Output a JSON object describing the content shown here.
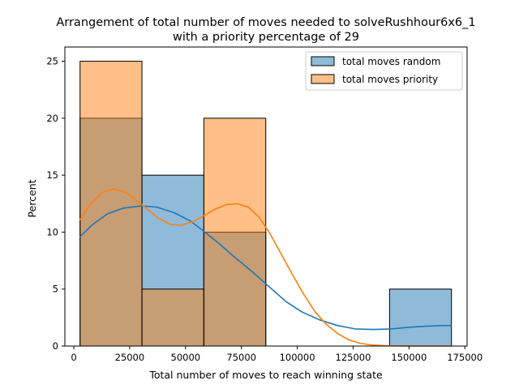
{
  "chart_data": {
    "type": "histogram",
    "title_line1": "Arrangement of total number of moves needed to solveRushhour6x6_1",
    "title_line2": "with a priority percentage of 29",
    "xlabel": "Total number of moves to reach winning state",
    "ylabel": "Percent",
    "xlim": [
      -4000,
      176000
    ],
    "ylim": [
      0,
      26.25
    ],
    "xticks": [
      {
        "value": 0,
        "label": "0"
      },
      {
        "value": 25000,
        "label": "25000"
      },
      {
        "value": 50000,
        "label": "50000"
      },
      {
        "value": 75000,
        "label": "75000"
      },
      {
        "value": 100000,
        "label": "100000"
      },
      {
        "value": 125000,
        "label": "125000"
      },
      {
        "value": 150000,
        "label": "150000"
      },
      {
        "value": 175000,
        "label": "175000"
      }
    ],
    "yticks": [
      {
        "value": 0,
        "label": "0"
      },
      {
        "value": 5,
        "label": "5"
      },
      {
        "value": 10,
        "label": "10"
      },
      {
        "value": 15,
        "label": "15"
      },
      {
        "value": 20,
        "label": "20"
      },
      {
        "value": 25,
        "label": "25"
      }
    ],
    "bin_edges": [
      2800,
      30500,
      58200,
      85900,
      113600,
      141300,
      169000
    ],
    "legend_position": "top-right",
    "series": [
      {
        "name": "total moves random",
        "color": "#1f77b4",
        "values": [
          20,
          15,
          10,
          0,
          0,
          5
        ],
        "kde": [
          [
            2800,
            9.6
          ],
          [
            8000,
            10.6
          ],
          [
            15000,
            11.6
          ],
          [
            22000,
            12.1
          ],
          [
            30000,
            12.3
          ],
          [
            37000,
            12.2
          ],
          [
            45000,
            11.7
          ],
          [
            52000,
            11.0
          ],
          [
            58000,
            10.1
          ],
          [
            65000,
            9.0
          ],
          [
            72000,
            7.8
          ],
          [
            80000,
            6.5
          ],
          [
            88000,
            5.1
          ],
          [
            95000,
            3.9
          ],
          [
            102000,
            3.0
          ],
          [
            110000,
            2.3
          ],
          [
            118000,
            1.8
          ],
          [
            126000,
            1.5
          ],
          [
            134000,
            1.45
          ],
          [
            142000,
            1.5
          ],
          [
            150000,
            1.65
          ],
          [
            158000,
            1.75
          ],
          [
            165000,
            1.8
          ],
          [
            169000,
            1.8
          ]
        ]
      },
      {
        "name": "total moves priority",
        "color": "#ff7f0e",
        "values": [
          25,
          5,
          20,
          0,
          0,
          0
        ],
        "kde": [
          [
            2800,
            11.1
          ],
          [
            8000,
            12.6
          ],
          [
            13000,
            13.5
          ],
          [
            18000,
            13.8
          ],
          [
            23000,
            13.5
          ],
          [
            28000,
            12.8
          ],
          [
            33000,
            12.0
          ],
          [
            38000,
            11.2
          ],
          [
            43000,
            10.7
          ],
          [
            48000,
            10.6
          ],
          [
            53000,
            10.9
          ],
          [
            58000,
            11.4
          ],
          [
            63000,
            12.0
          ],
          [
            68000,
            12.4
          ],
          [
            73000,
            12.5
          ],
          [
            78000,
            12.2
          ],
          [
            83000,
            11.3
          ],
          [
            88000,
            9.8
          ],
          [
            93000,
            8.0
          ],
          [
            98000,
            6.2
          ],
          [
            103000,
            4.5
          ],
          [
            108000,
            3.0
          ],
          [
            113000,
            1.9
          ],
          [
            118000,
            1.1
          ],
          [
            123000,
            0.55
          ],
          [
            128000,
            0.25
          ],
          [
            133000,
            0.1
          ],
          [
            140000,
            0.02
          ],
          [
            150000,
            0.0
          ],
          [
            160000,
            0.0
          ],
          [
            169000,
            0.0
          ]
        ]
      }
    ]
  }
}
